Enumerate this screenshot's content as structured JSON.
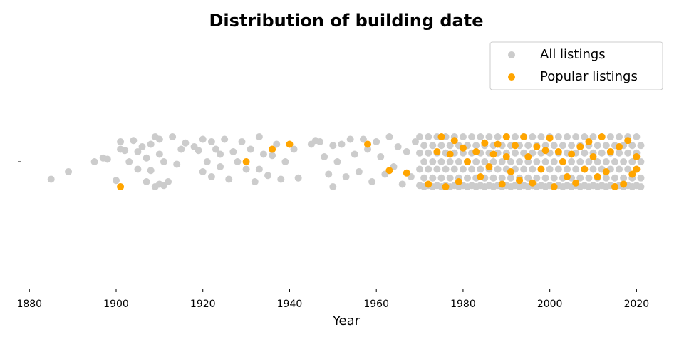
{
  "chart_data": {
    "type": "scatter",
    "title": "Distribution of building date",
    "title_color": "#ffa500",
    "x_label": "Year",
    "xlim": [
      1877,
      2027
    ],
    "xticks": [
      1880,
      1900,
      1920,
      1940,
      1960,
      1980,
      2000,
      2020
    ],
    "ylim": [
      -0.5,
      0.5
    ],
    "yticks": [
      0
    ],
    "legend": "upper right",
    "series": [
      {
        "name": "All listings",
        "color": "#cccccc",
        "x": [
          1885,
          1889,
          1895,
          1897,
          1898,
          1900,
          1901,
          1901,
          1902,
          1903,
          1904,
          1905,
          1905,
          1906,
          1907,
          1907,
          1908,
          1908,
          1909,
          1909,
          1910,
          1910,
          1910,
          1911,
          1911,
          1912,
          1913,
          1914,
          1915,
          1916,
          1918,
          1919,
          1920,
          1920,
          1921,
          1922,
          1922,
          1923,
          1924,
          1924,
          1925,
          1926,
          1927,
          1928,
          1929,
          1930,
          1931,
          1932,
          1933,
          1933,
          1934,
          1935,
          1936,
          1937,
          1938,
          1939,
          1941,
          1942,
          1945,
          1946,
          1947,
          1948,
          1949,
          1950,
          1950,
          1951,
          1952,
          1953,
          1954,
          1955,
          1956,
          1957,
          1958,
          1959,
          1960,
          1961,
          1962,
          1963,
          1964,
          1965,
          1966,
          1967,
          1968,
          1969,
          1970,
          1970,
          1970,
          1970,
          1971,
          1971,
          1971,
          1971,
          1972,
          1972,
          1972,
          1972,
          1973,
          1973,
          1973,
          1973,
          1974,
          1974,
          1974,
          1974,
          1975,
          1975,
          1975,
          1975,
          1976,
          1976,
          1976,
          1976,
          1977,
          1977,
          1977,
          1977,
          1978,
          1978,
          1978,
          1978,
          1979,
          1979,
          1979,
          1979,
          1980,
          1980,
          1980,
          1980,
          1981,
          1981,
          1981,
          1981,
          1982,
          1982,
          1982,
          1982,
          1983,
          1983,
          1983,
          1983,
          1984,
          1984,
          1984,
          1984,
          1985,
          1985,
          1985,
          1985,
          1986,
          1986,
          1986,
          1986,
          1987,
          1987,
          1987,
          1987,
          1988,
          1988,
          1988,
          1988,
          1989,
          1989,
          1989,
          1989,
          1990,
          1990,
          1990,
          1990,
          1991,
          1991,
          1991,
          1991,
          1992,
          1992,
          1992,
          1992,
          1993,
          1993,
          1993,
          1993,
          1994,
          1994,
          1994,
          1994,
          1995,
          1995,
          1995,
          1995,
          1996,
          1996,
          1996,
          1996,
          1997,
          1997,
          1997,
          1997,
          1998,
          1998,
          1998,
          1998,
          1999,
          1999,
          1999,
          1999,
          2000,
          2000,
          2000,
          2000,
          2001,
          2001,
          2001,
          2001,
          2002,
          2002,
          2002,
          2002,
          2003,
          2003,
          2003,
          2003,
          2004,
          2004,
          2004,
          2004,
          2005,
          2005,
          2005,
          2005,
          2006,
          2006,
          2006,
          2006,
          2007,
          2007,
          2007,
          2007,
          2008,
          2008,
          2008,
          2008,
          2009,
          2009,
          2009,
          2009,
          2010,
          2010,
          2010,
          2010,
          2011,
          2011,
          2011,
          2011,
          2012,
          2012,
          2012,
          2012,
          2013,
          2013,
          2013,
          2013,
          2014,
          2014,
          2014,
          2014,
          2015,
          2015,
          2015,
          2015,
          2016,
          2016,
          2016,
          2016,
          2017,
          2017,
          2017,
          2017,
          2018,
          2018,
          2018,
          2018,
          2019,
          2019,
          2019,
          2019,
          2020,
          2020,
          2020,
          2020,
          2021,
          2021,
          2021,
          2021
        ],
        "y": [
          -0.07,
          -0.04,
          0.0,
          0.015,
          0.01,
          -0.075,
          0.08,
          0.05,
          0.045,
          0.0,
          0.085,
          0.04,
          -0.03,
          0.06,
          -0.08,
          0.015,
          -0.035,
          0.07,
          0.1,
          -0.1,
          0.09,
          -0.09,
          0.03,
          -0.095,
          0.0,
          -0.08,
          0.1,
          -0.01,
          0.05,
          0.075,
          0.06,
          0.045,
          0.09,
          -0.04,
          0.0,
          0.08,
          -0.06,
          0.05,
          0.03,
          -0.02,
          0.09,
          -0.07,
          0.04,
          0.0,
          0.08,
          -0.03,
          0.05,
          -0.08,
          0.1,
          -0.03,
          0.03,
          -0.055,
          0.025,
          0.07,
          -0.07,
          0.0,
          0.05,
          -0.065,
          0.07,
          0.085,
          0.08,
          0.02,
          -0.05,
          0.065,
          -0.1,
          0.0,
          0.07,
          -0.06,
          0.09,
          0.03,
          -0.04,
          0.09,
          0.05,
          -0.08,
          0.08,
          0.02,
          -0.05,
          0.1,
          -0.02,
          0.06,
          -0.09,
          0.04,
          -0.06,
          0.08,
          0.1,
          0.035,
          -0.03,
          -0.095,
          0.065,
          0.0,
          -0.065,
          -0.1,
          0.1,
          0.035,
          -0.03,
          -0.095,
          0.065,
          0.0,
          -0.065,
          -0.1,
          0.1,
          0.035,
          -0.03,
          -0.095,
          0.065,
          0.0,
          -0.065,
          -0.1,
          0.1,
          0.035,
          -0.03,
          -0.095,
          0.065,
          0.0,
          -0.065,
          -0.1,
          0.1,
          0.035,
          -0.03,
          -0.095,
          0.065,
          0.0,
          -0.065,
          -0.1,
          0.1,
          0.035,
          -0.03,
          -0.095,
          0.065,
          0.0,
          -0.065,
          -0.1,
          0.1,
          0.035,
          -0.03,
          -0.095,
          0.065,
          0.0,
          -0.065,
          -0.1,
          0.1,
          0.035,
          -0.03,
          -0.095,
          0.065,
          0.0,
          -0.065,
          -0.1,
          0.1,
          0.035,
          -0.03,
          -0.095,
          0.065,
          0.0,
          -0.065,
          -0.1,
          0.1,
          0.035,
          -0.03,
          -0.095,
          0.065,
          0.0,
          -0.065,
          -0.1,
          0.1,
          0.035,
          -0.03,
          -0.095,
          0.065,
          0.0,
          -0.065,
          -0.1,
          0.1,
          0.035,
          -0.03,
          -0.095,
          0.065,
          0.0,
          -0.065,
          -0.1,
          0.1,
          0.035,
          -0.03,
          -0.095,
          0.065,
          0.0,
          -0.065,
          -0.1,
          0.1,
          0.035,
          -0.03,
          -0.095,
          0.065,
          0.0,
          -0.065,
          -0.1,
          0.1,
          0.035,
          -0.03,
          -0.095,
          0.065,
          0.0,
          -0.065,
          -0.1,
          0.1,
          0.035,
          -0.03,
          -0.095,
          0.065,
          0.0,
          -0.065,
          -0.1,
          0.1,
          0.035,
          -0.03,
          -0.095,
          0.065,
          0.0,
          -0.065,
          -0.1,
          0.1,
          0.035,
          -0.03,
          -0.095,
          0.065,
          0.0,
          -0.065,
          -0.1,
          0.1,
          0.035,
          -0.03,
          -0.095,
          0.065,
          0.0,
          -0.065,
          -0.1,
          0.1,
          0.035,
          -0.03,
          -0.095,
          0.065,
          0.0,
          -0.065,
          -0.1,
          0.1,
          0.035,
          -0.03,
          -0.095,
          0.065,
          0.0,
          -0.065,
          -0.1,
          0.1,
          0.035,
          -0.03,
          -0.095,
          0.065,
          0.0,
          -0.065,
          -0.1,
          0.1,
          0.035,
          -0.03,
          -0.095,
          0.065,
          0.0,
          -0.065,
          -0.1,
          0.1,
          0.035,
          -0.03,
          -0.095,
          0.065,
          0.0,
          -0.065,
          -0.1,
          0.1,
          0.035,
          -0.03,
          -0.095,
          0.065,
          0.0,
          -0.065,
          -0.1,
          0.1,
          0.035,
          -0.03,
          -0.095,
          0.065,
          0.0,
          -0.065,
          -0.1
        ]
      },
      {
        "name": "Popular listings",
        "color": "#ffa500",
        "x": [
          1901,
          1930,
          1936,
          1940,
          1958,
          1963,
          1967,
          1972,
          1974,
          1975,
          1976,
          1977,
          1978,
          1979,
          1980,
          1981,
          1983,
          1984,
          1985,
          1986,
          1987,
          1988,
          1989,
          1990,
          1990,
          1991,
          1992,
          1993,
          1994,
          1995,
          1996,
          1997,
          1998,
          1999,
          2000,
          2001,
          2002,
          2003,
          2004,
          2005,
          2006,
          2007,
          2008,
          2009,
          2010,
          2011,
          2012,
          2013,
          2014,
          2015,
          2016,
          2017,
          2018,
          2019,
          2020,
          2020
        ],
        "y": [
          -0.1,
          0.0,
          0.05,
          0.07,
          0.07,
          -0.035,
          -0.045,
          -0.09,
          0.04,
          0.1,
          -0.1,
          0.03,
          0.085,
          -0.08,
          0.055,
          0.0,
          0.04,
          -0.06,
          0.075,
          -0.02,
          0.03,
          0.07,
          -0.09,
          0.1,
          0.02,
          -0.04,
          0.065,
          -0.075,
          0.1,
          0.02,
          -0.085,
          0.06,
          -0.03,
          0.045,
          0.095,
          -0.1,
          0.04,
          0.0,
          -0.06,
          0.03,
          -0.085,
          0.06,
          -0.03,
          0.08,
          0.02,
          -0.06,
          0.1,
          -0.04,
          0.04,
          -0.1,
          0.06,
          -0.09,
          0.085,
          -0.05,
          0.02,
          -0.03
        ]
      }
    ]
  }
}
